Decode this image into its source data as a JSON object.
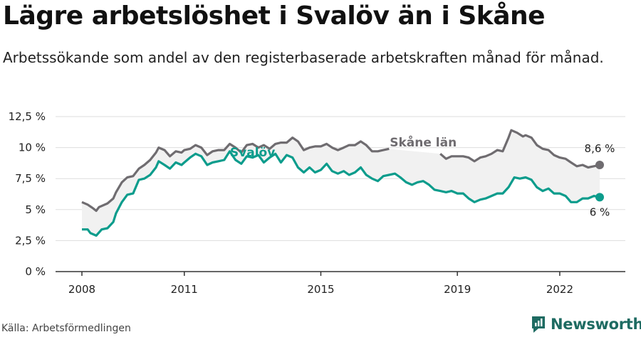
{
  "title": "Lägre arbetslöshet i Svalöv än i Skåne",
  "subtitle": "Arbetssökande som andel av den registerbaserade arbetskraften månad för månad.",
  "source": "Källa: Arbetsförmedlingen",
  "brand": "Newsworthy",
  "colors": {
    "svalov": "#0c9c8c",
    "skane": "#6f6c70",
    "band": "#f1f1f1",
    "grid": "#dddddd",
    "axis": "#333333"
  },
  "chart_data": {
    "type": "line",
    "title": "Lägre arbetslöshet i Svalöv än i Skåne",
    "xlabel": "",
    "ylabel": "",
    "xlim": [
      2008.0,
      2023.17
    ],
    "ylim": [
      0,
      12.5
    ],
    "yticks": [
      0,
      2.5,
      5,
      7.5,
      10,
      12.5
    ],
    "ytick_labels": [
      "0 %",
      "2,5 %",
      "5 %",
      "7,5 %",
      "10 %",
      "12,5 %"
    ],
    "xticks": [
      2008,
      2011,
      2015,
      2019,
      2022
    ],
    "xtick_labels": [
      "2008",
      "2011",
      "2015",
      "2019",
      "2022"
    ],
    "series": [
      {
        "name": "Skåne län",
        "label": "Skåne län",
        "end_label": "8,6 %",
        "points": [
          [
            2008.0,
            5.6
          ],
          [
            2008.17,
            5.4
          ],
          [
            2008.33,
            5.1
          ],
          [
            2008.42,
            4.9
          ],
          [
            2008.5,
            5.2
          ],
          [
            2008.75,
            5.5
          ],
          [
            2008.92,
            5.9
          ],
          [
            2009.0,
            6.4
          ],
          [
            2009.17,
            7.2
          ],
          [
            2009.33,
            7.6
          ],
          [
            2009.5,
            7.7
          ],
          [
            2009.67,
            8.3
          ],
          [
            2009.83,
            8.6
          ],
          [
            2010.0,
            9.0
          ],
          [
            2010.17,
            9.6
          ],
          [
            2010.25,
            10.0
          ],
          [
            2010.42,
            9.8
          ],
          [
            2010.58,
            9.3
          ],
          [
            2010.75,
            9.7
          ],
          [
            2010.92,
            9.6
          ],
          [
            2011.0,
            9.8
          ],
          [
            2011.17,
            9.9
          ],
          [
            2011.33,
            10.2
          ],
          [
            2011.5,
            10.0
          ],
          [
            2011.67,
            9.4
          ],
          [
            2011.83,
            9.7
          ],
          [
            2012.0,
            9.8
          ],
          [
            2012.17,
            9.8
          ],
          [
            2012.33,
            10.3
          ],
          [
            2012.5,
            10.0
          ],
          [
            2012.67,
            9.6
          ],
          [
            2012.83,
            10.2
          ],
          [
            2013.0,
            10.3
          ],
          [
            2013.17,
            10.0
          ],
          [
            2013.33,
            10.2
          ],
          [
            2013.5,
            9.9
          ],
          [
            2013.67,
            10.3
          ],
          [
            2013.83,
            10.4
          ],
          [
            2014.0,
            10.4
          ],
          [
            2014.17,
            10.8
          ],
          [
            2014.33,
            10.5
          ],
          [
            2014.5,
            9.8
          ],
          [
            2014.67,
            10.0
          ],
          [
            2014.83,
            10.1
          ],
          [
            2015.0,
            10.1
          ],
          [
            2015.17,
            10.3
          ],
          [
            2015.33,
            10.0
          ],
          [
            2015.5,
            9.8
          ],
          [
            2015.67,
            10.0
          ],
          [
            2015.83,
            10.2
          ],
          [
            2016.0,
            10.2
          ],
          [
            2016.17,
            10.5
          ],
          [
            2016.33,
            10.2
          ],
          [
            2016.5,
            9.7
          ],
          [
            2016.67,
            9.7
          ],
          [
            2016.83,
            9.8
          ],
          [
            2017.0,
            9.9
          ],
          null,
          [
            2018.5,
            9.5
          ],
          [
            2018.67,
            9.1
          ],
          [
            2018.83,
            9.3
          ],
          [
            2019.0,
            9.3
          ],
          [
            2019.17,
            9.3
          ],
          [
            2019.33,
            9.2
          ],
          [
            2019.5,
            8.9
          ],
          [
            2019.67,
            9.2
          ],
          [
            2019.83,
            9.3
          ],
          [
            2020.0,
            9.5
          ],
          [
            2020.17,
            9.8
          ],
          [
            2020.33,
            9.7
          ],
          [
            2020.5,
            10.8
          ],
          [
            2020.58,
            11.4
          ],
          [
            2020.75,
            11.2
          ],
          [
            2020.92,
            10.9
          ],
          [
            2021.0,
            11.0
          ],
          [
            2021.17,
            10.8
          ],
          [
            2021.33,
            10.2
          ],
          [
            2021.5,
            9.9
          ],
          [
            2021.67,
            9.8
          ],
          [
            2021.83,
            9.4
          ],
          [
            2022.0,
            9.2
          ],
          [
            2022.17,
            9.1
          ],
          [
            2022.33,
            8.8
          ],
          [
            2022.5,
            8.5
          ],
          [
            2022.67,
            8.6
          ],
          [
            2022.83,
            8.4
          ],
          [
            2023.0,
            8.5
          ],
          [
            2023.17,
            8.6
          ]
        ]
      },
      {
        "name": "Svalöv",
        "label": "Svalöv",
        "end_label": "6 %",
        "points": [
          [
            2008.0,
            3.4
          ],
          [
            2008.17,
            3.4
          ],
          [
            2008.25,
            3.1
          ],
          [
            2008.42,
            2.9
          ],
          [
            2008.58,
            3.4
          ],
          [
            2008.75,
            3.5
          ],
          [
            2008.92,
            4.0
          ],
          [
            2009.0,
            4.7
          ],
          [
            2009.17,
            5.6
          ],
          [
            2009.33,
            6.2
          ],
          [
            2009.5,
            6.3
          ],
          [
            2009.67,
            7.4
          ],
          [
            2009.83,
            7.5
          ],
          [
            2010.0,
            7.8
          ],
          [
            2010.17,
            8.4
          ],
          [
            2010.25,
            8.9
          ],
          [
            2010.42,
            8.6
          ],
          [
            2010.58,
            8.3
          ],
          [
            2010.75,
            8.8
          ],
          [
            2010.92,
            8.6
          ],
          [
            2011.0,
            8.8
          ],
          [
            2011.17,
            9.2
          ],
          [
            2011.33,
            9.5
          ],
          [
            2011.5,
            9.3
          ],
          [
            2011.67,
            8.6
          ],
          [
            2011.83,
            8.8
          ],
          [
            2012.0,
            8.9
          ],
          [
            2012.17,
            9.0
          ],
          [
            2012.33,
            9.7
          ],
          [
            2012.5,
            9.0
          ],
          [
            2012.67,
            8.7
          ],
          [
            2012.83,
            9.3
          ],
          [
            2013.0,
            9.2
          ],
          [
            2013.17,
            9.4
          ],
          [
            2013.33,
            8.8
          ],
          [
            2013.5,
            9.2
          ],
          [
            2013.67,
            9.5
          ],
          [
            2013.83,
            8.8
          ],
          [
            2014.0,
            9.4
          ],
          [
            2014.17,
            9.2
          ],
          [
            2014.33,
            8.4
          ],
          [
            2014.5,
            8.0
          ],
          [
            2014.67,
            8.4
          ],
          [
            2014.83,
            8.0
          ],
          [
            2015.0,
            8.2
          ],
          [
            2015.17,
            8.7
          ],
          [
            2015.33,
            8.1
          ],
          [
            2015.5,
            7.9
          ],
          [
            2015.67,
            8.1
          ],
          [
            2015.83,
            7.8
          ],
          [
            2016.0,
            8.0
          ],
          [
            2016.17,
            8.4
          ],
          [
            2016.33,
            7.8
          ],
          [
            2016.5,
            7.5
          ],
          [
            2016.67,
            7.3
          ],
          [
            2016.83,
            7.7
          ],
          [
            2017.0,
            7.8
          ],
          [
            2017.17,
            7.9
          ],
          [
            2017.33,
            7.6
          ],
          [
            2017.5,
            7.2
          ],
          [
            2017.67,
            7.0
          ],
          [
            2017.83,
            7.2
          ],
          [
            2018.0,
            7.3
          ],
          [
            2018.17,
            7.0
          ],
          [
            2018.33,
            6.6
          ],
          [
            2018.5,
            6.5
          ],
          [
            2018.67,
            6.4
          ],
          [
            2018.83,
            6.5
          ],
          [
            2019.0,
            6.3
          ],
          [
            2019.17,
            6.3
          ],
          [
            2019.33,
            5.9
          ],
          [
            2019.5,
            5.6
          ],
          [
            2019.67,
            5.8
          ],
          [
            2019.83,
            5.9
          ],
          [
            2020.0,
            6.1
          ],
          [
            2020.17,
            6.3
          ],
          [
            2020.33,
            6.3
          ],
          [
            2020.5,
            6.8
          ],
          [
            2020.67,
            7.6
          ],
          [
            2020.83,
            7.5
          ],
          [
            2021.0,
            7.6
          ],
          [
            2021.17,
            7.4
          ],
          [
            2021.33,
            6.8
          ],
          [
            2021.5,
            6.5
          ],
          [
            2021.67,
            6.7
          ],
          [
            2021.83,
            6.3
          ],
          [
            2022.0,
            6.3
          ],
          [
            2022.17,
            6.1
          ],
          [
            2022.33,
            5.6
          ],
          [
            2022.5,
            5.6
          ],
          [
            2022.67,
            5.9
          ],
          [
            2022.83,
            5.9
          ],
          [
            2023.0,
            6.1
          ],
          [
            2023.17,
            6.0
          ]
        ]
      }
    ]
  }
}
